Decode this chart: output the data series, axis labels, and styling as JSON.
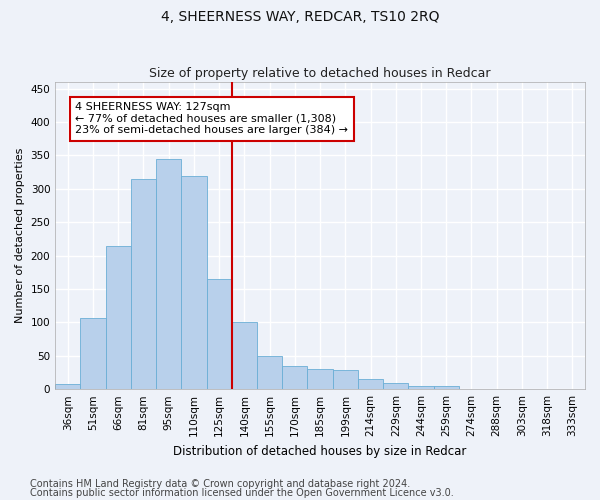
{
  "title": "4, SHEERNESS WAY, REDCAR, TS10 2RQ",
  "subtitle": "Size of property relative to detached houses in Redcar",
  "xlabel": "Distribution of detached houses by size in Redcar",
  "ylabel": "Number of detached properties",
  "categories": [
    "36sqm",
    "51sqm",
    "66sqm",
    "81sqm",
    "95sqm",
    "110sqm",
    "125sqm",
    "140sqm",
    "155sqm",
    "170sqm",
    "185sqm",
    "199sqm",
    "214sqm",
    "229sqm",
    "244sqm",
    "259sqm",
    "274sqm",
    "288sqm",
    "303sqm",
    "318sqm",
    "333sqm"
  ],
  "values": [
    8,
    107,
    215,
    315,
    345,
    320,
    165,
    100,
    50,
    35,
    30,
    28,
    15,
    10,
    5,
    5,
    1,
    1,
    0,
    0,
    0
  ],
  "bar_color": "#b8d0eb",
  "bar_edge_color": "#6aaed6",
  "vline_color": "#cc0000",
  "vline_x_index": 6.5,
  "annotation_text": "4 SHEERNESS WAY: 127sqm\n← 77% of detached houses are smaller (1,308)\n23% of semi-detached houses are larger (384) →",
  "annotation_box_facecolor": "#ffffff",
  "annotation_box_edgecolor": "#cc0000",
  "ylim": [
    0,
    460
  ],
  "yticks": [
    0,
    50,
    100,
    150,
    200,
    250,
    300,
    350,
    400,
    450
  ],
  "footnote1": "Contains HM Land Registry data © Crown copyright and database right 2024.",
  "footnote2": "Contains public sector information licensed under the Open Government Licence v3.0.",
  "background_color": "#eef2f9",
  "grid_color": "#ffffff",
  "title_fontsize": 10,
  "subtitle_fontsize": 9,
  "xlabel_fontsize": 8.5,
  "ylabel_fontsize": 8,
  "tick_fontsize": 7.5,
  "annotation_fontsize": 8,
  "footnote_fontsize": 7
}
